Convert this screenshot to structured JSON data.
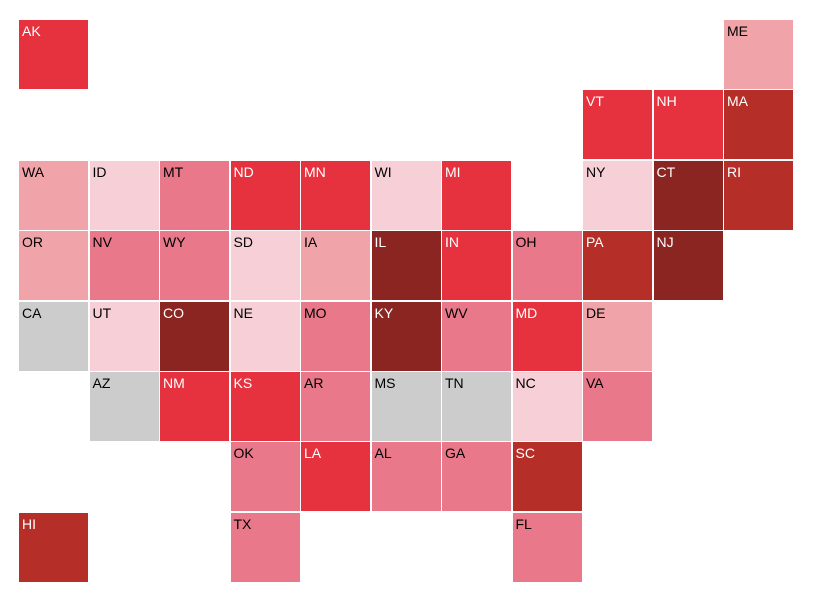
{
  "tiles": [
    {
      "label": "AK",
      "color": "#e5323e"
    },
    {
      "label": "ME",
      "color": "#f0a3a8"
    },
    {
      "label": "VT",
      "color": "#e5323e"
    },
    {
      "label": "NH",
      "color": "#e5323e"
    },
    {
      "label": "MA",
      "color": "#b52e27"
    },
    {
      "label": "WA",
      "color": "#f0a3a8"
    },
    {
      "label": "ID",
      "color": "#f6d0d6"
    },
    {
      "label": "MT",
      "color": "#e8788a"
    },
    {
      "label": "ND",
      "color": "#e5323e"
    },
    {
      "label": "MN",
      "color": "#e5323e"
    },
    {
      "label": "WI",
      "color": "#f6d0d6"
    },
    {
      "label": "MI",
      "color": "#e5323e"
    },
    {
      "label": "NY",
      "color": "#f6d0d6"
    },
    {
      "label": "CT",
      "color": "#8b2522"
    },
    {
      "label": "RI",
      "color": "#b52e27"
    },
    {
      "label": "OR",
      "color": "#f0a3a8"
    },
    {
      "label": "NV",
      "color": "#e8788a"
    },
    {
      "label": "WY",
      "color": "#e8788a"
    },
    {
      "label": "SD",
      "color": "#f6d0d6"
    },
    {
      "label": "IA",
      "color": "#f0a3a8"
    },
    {
      "label": "IL",
      "color": "#8b2522"
    },
    {
      "label": "IN",
      "color": "#e5323e"
    },
    {
      "label": "OH",
      "color": "#e8788a"
    },
    {
      "label": "PA",
      "color": "#b52e27"
    },
    {
      "label": "NJ",
      "color": "#8b2522"
    },
    {
      "label": "CA",
      "color": "#cccccc"
    },
    {
      "label": "UT",
      "color": "#f6d0d6"
    },
    {
      "label": "CO",
      "color": "#8b2522"
    },
    {
      "label": "NE",
      "color": "#f6d0d6"
    },
    {
      "label": "MO",
      "color": "#e8788a"
    },
    {
      "label": "KY",
      "color": "#8b2522"
    },
    {
      "label": "WV",
      "color": "#e8788a"
    },
    {
      "label": "MD",
      "color": "#e5323e"
    },
    {
      "label": "DE",
      "color": "#f0a3a8"
    },
    {
      "label": "AZ",
      "color": "#cccccc"
    },
    {
      "label": "NM",
      "color": "#e5323e"
    },
    {
      "label": "KS",
      "color": "#e5323e"
    },
    {
      "label": "AR",
      "color": "#e8788a"
    },
    {
      "label": "MS",
      "color": "#cccccc"
    },
    {
      "label": "TN",
      "color": "#cccccc"
    },
    {
      "label": "NC",
      "color": "#f6d0d6"
    },
    {
      "label": "VA",
      "color": "#e8788a"
    },
    {
      "label": "OK",
      "color": "#e8788a"
    },
    {
      "label": "LA",
      "color": "#e5323e"
    },
    {
      "label": "AL",
      "color": "#e8788a"
    },
    {
      "label": "GA",
      "color": "#e8788a"
    },
    {
      "label": "SC",
      "color": "#b52e27"
    },
    {
      "label": "HI",
      "color": "#b52e27"
    },
    {
      "label": "TX",
      "color": "#e8788a"
    },
    {
      "label": "FL",
      "color": "#e8788a"
    }
  ]
}
